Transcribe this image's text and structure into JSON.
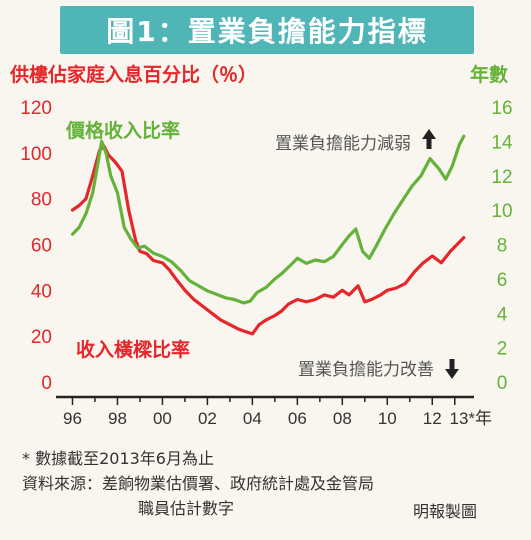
{
  "header": {
    "title": "圖1：置業負擔能力指標"
  },
  "chart_data": {
    "type": "line",
    "left_axis_title": "供樓佔家庭入息百分比（％）",
    "right_axis_title": "年數",
    "left_ticks": [
      "120",
      "100",
      "80",
      "60",
      "40",
      "20",
      "0"
    ],
    "right_ticks": [
      "16",
      "14",
      "12",
      "10",
      "8",
      "6",
      "4",
      "2",
      "0"
    ],
    "x_ticks": [
      "96",
      "98",
      "00",
      "02",
      "04",
      "06",
      "08",
      "10",
      "12",
      "13*年"
    ],
    "ylim_left": [
      0,
      120
    ],
    "ylim_right": [
      0,
      16
    ],
    "xlim": [
      1995.8,
      2013.5
    ],
    "grid": false,
    "series": [
      {
        "name": "收入橫樑比率",
        "axis": "left",
        "color": "#e5262b",
        "x": [
          1996.0,
          1996.3,
          1996.6,
          1996.9,
          1997.2,
          1997.4,
          1997.6,
          1997.9,
          1998.2,
          1998.5,
          1998.8,
          1999.0,
          1999.3,
          1999.6,
          2000.0,
          2000.3,
          2000.6,
          2001.0,
          2001.4,
          2001.8,
          2002.2,
          2002.6,
          2003.0,
          2003.4,
          2003.7,
          2004.0,
          2004.3,
          2004.6,
          2005.0,
          2005.3,
          2005.6,
          2006.0,
          2006.4,
          2006.8,
          2007.2,
          2007.6,
          2008.0,
          2008.3,
          2008.7,
          2009.0,
          2009.3,
          2009.7,
          2010.0,
          2010.4,
          2010.8,
          2011.2,
          2011.6,
          2012.0,
          2012.4,
          2012.8,
          2013.2,
          2013.4
        ],
        "values": [
          75,
          77,
          80,
          90,
          101,
          103,
          99,
          96,
          92,
          75,
          62,
          57,
          56,
          53,
          52,
          49,
          45,
          40,
          36,
          33,
          30,
          27,
          25,
          23,
          22,
          21,
          25,
          27,
          29,
          31,
          34,
          36,
          35,
          36,
          38,
          37,
          40,
          38,
          42,
          35,
          36,
          38,
          40,
          41,
          43,
          48,
          52,
          55,
          52,
          57,
          61,
          63
        ]
      },
      {
        "name": "價格收入比率",
        "axis": "right",
        "color": "#65b23a",
        "x": [
          1996.0,
          1996.3,
          1996.6,
          1996.9,
          1997.1,
          1997.3,
          1997.5,
          1997.7,
          1998.0,
          1998.3,
          1998.6,
          1998.9,
          1999.2,
          1999.6,
          2000.0,
          2000.4,
          2000.8,
          2001.2,
          2001.6,
          2002.0,
          2002.4,
          2002.8,
          2003.2,
          2003.6,
          2003.9,
          2004.2,
          2004.6,
          2005.0,
          2005.3,
          2005.7,
          2006.0,
          2006.4,
          2006.8,
          2007.2,
          2007.6,
          2008.0,
          2008.3,
          2008.6,
          2008.9,
          2009.2,
          2009.5,
          2009.9,
          2010.3,
          2010.7,
          2011.1,
          2011.5,
          2011.9,
          2012.3,
          2012.6,
          2012.9,
          2013.2,
          2013.4
        ],
        "values": [
          8.6,
          9.0,
          9.8,
          11.0,
          12.5,
          14.0,
          13.3,
          12.0,
          11.0,
          9.0,
          8.3,
          7.8,
          7.9,
          7.5,
          7.3,
          7.0,
          6.5,
          5.9,
          5.6,
          5.3,
          5.1,
          4.9,
          4.8,
          4.6,
          4.7,
          5.2,
          5.5,
          6.0,
          6.3,
          6.8,
          7.2,
          6.9,
          7.1,
          7.0,
          7.3,
          8.0,
          8.5,
          8.9,
          7.6,
          7.2,
          7.9,
          8.9,
          9.8,
          10.6,
          11.4,
          12.0,
          13.0,
          12.4,
          11.8,
          12.6,
          13.8,
          14.3
        ]
      }
    ],
    "annotations": [
      {
        "text": "價格收入比率",
        "color": "#65b23a"
      },
      {
        "text": "收入橫樑比率",
        "color": "#e5262b"
      },
      {
        "text": "置業負擔能力減弱",
        "color": "#555555",
        "arrow": "up"
      },
      {
        "text": "置業負擔能力改善",
        "color": "#555555",
        "arrow": "down"
      }
    ]
  },
  "footnotes": {
    "note": "* 數據截至2013年6月為止",
    "source": "資料來源：差餉物業估價署、政府統計處及金管局",
    "source_cont": "職員估計數字",
    "credit": "明報製圖"
  }
}
